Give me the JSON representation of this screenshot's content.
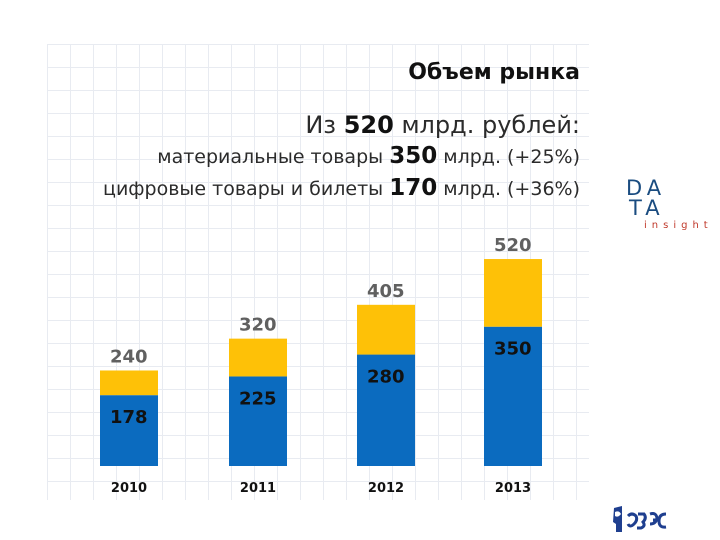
{
  "slide": {
    "title": "Объем рынка",
    "summary": {
      "line1_prefix": "Из",
      "line1_value": "520",
      "line1_suffix": "млрд. рублей:",
      "line2_prefix": "материальные товары",
      "line2_value": "350",
      "line2_suffix": "млрд. (+25%)",
      "line3_prefix": "цифровые товары и билеты",
      "line3_value": "170",
      "line3_suffix": "млрд. (+36%)"
    },
    "logo": {
      "row1": "DA",
      "row2": "TA",
      "sub": "insight"
    }
  },
  "colors": {
    "material": "#0b6bbf",
    "digital": "#fec107",
    "total_label": "#606060",
    "inner_label": "#111111"
  },
  "chart_data": {
    "type": "bar",
    "stacked": true,
    "title": "Объем рынка",
    "categories": [
      "2010",
      "2011",
      "2012",
      "2013"
    ],
    "series": [
      {
        "name": "материальные товары",
        "values": [
          178,
          225,
          280,
          350
        ]
      },
      {
        "name": "цифровые товары и билеты",
        "values": [
          62,
          95,
          125,
          170
        ]
      }
    ],
    "totals": [
      240,
      320,
      405,
      520
    ],
    "ylim": [
      0,
      560
    ],
    "xlabel": "",
    "ylabel": "",
    "grid": false,
    "legend": "none"
  }
}
